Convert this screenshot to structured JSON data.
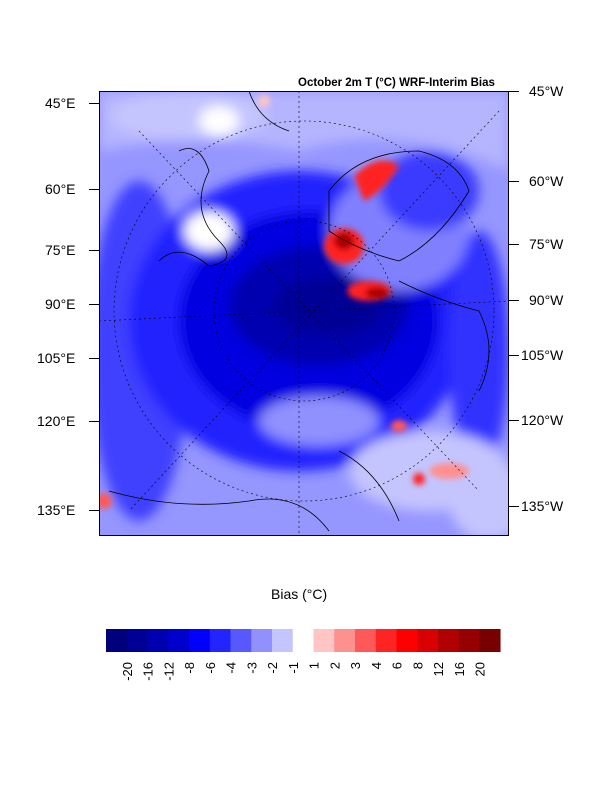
{
  "chart_data": {
    "type": "heatmap",
    "title": "October 2m T (°C) WRF-Interim Bias",
    "left_labels": [
      "45°E",
      "60°E",
      "75°E",
      "90°E",
      "105°E",
      "120°E",
      "135°E"
    ],
    "right_labels": [
      "45°W",
      "60°W",
      "75°W",
      "90°W",
      "105°W",
      "120°W",
      "135°W"
    ],
    "colorbar": {
      "title": "Bias (°C)",
      "levels": [
        "-20",
        "-16",
        "-12",
        "-8",
        "-6",
        "-4",
        "-3",
        "-2",
        "-1",
        "1",
        "2",
        "3",
        "4",
        "6",
        "8",
        "12",
        "16",
        "20"
      ],
      "colors": [
        "#00007c",
        "#000096",
        "#0000b0",
        "#0000cc",
        "#0000ff",
        "#2424ff",
        "#5858ff",
        "#9090ff",
        "#c4c4ff",
        "#ffffff",
        "#ffc4c4",
        "#ff9090",
        "#ff5858",
        "#ff2424",
        "#ff0000",
        "#d80000",
        "#b00000",
        "#960000",
        "#780000"
      ]
    }
  }
}
